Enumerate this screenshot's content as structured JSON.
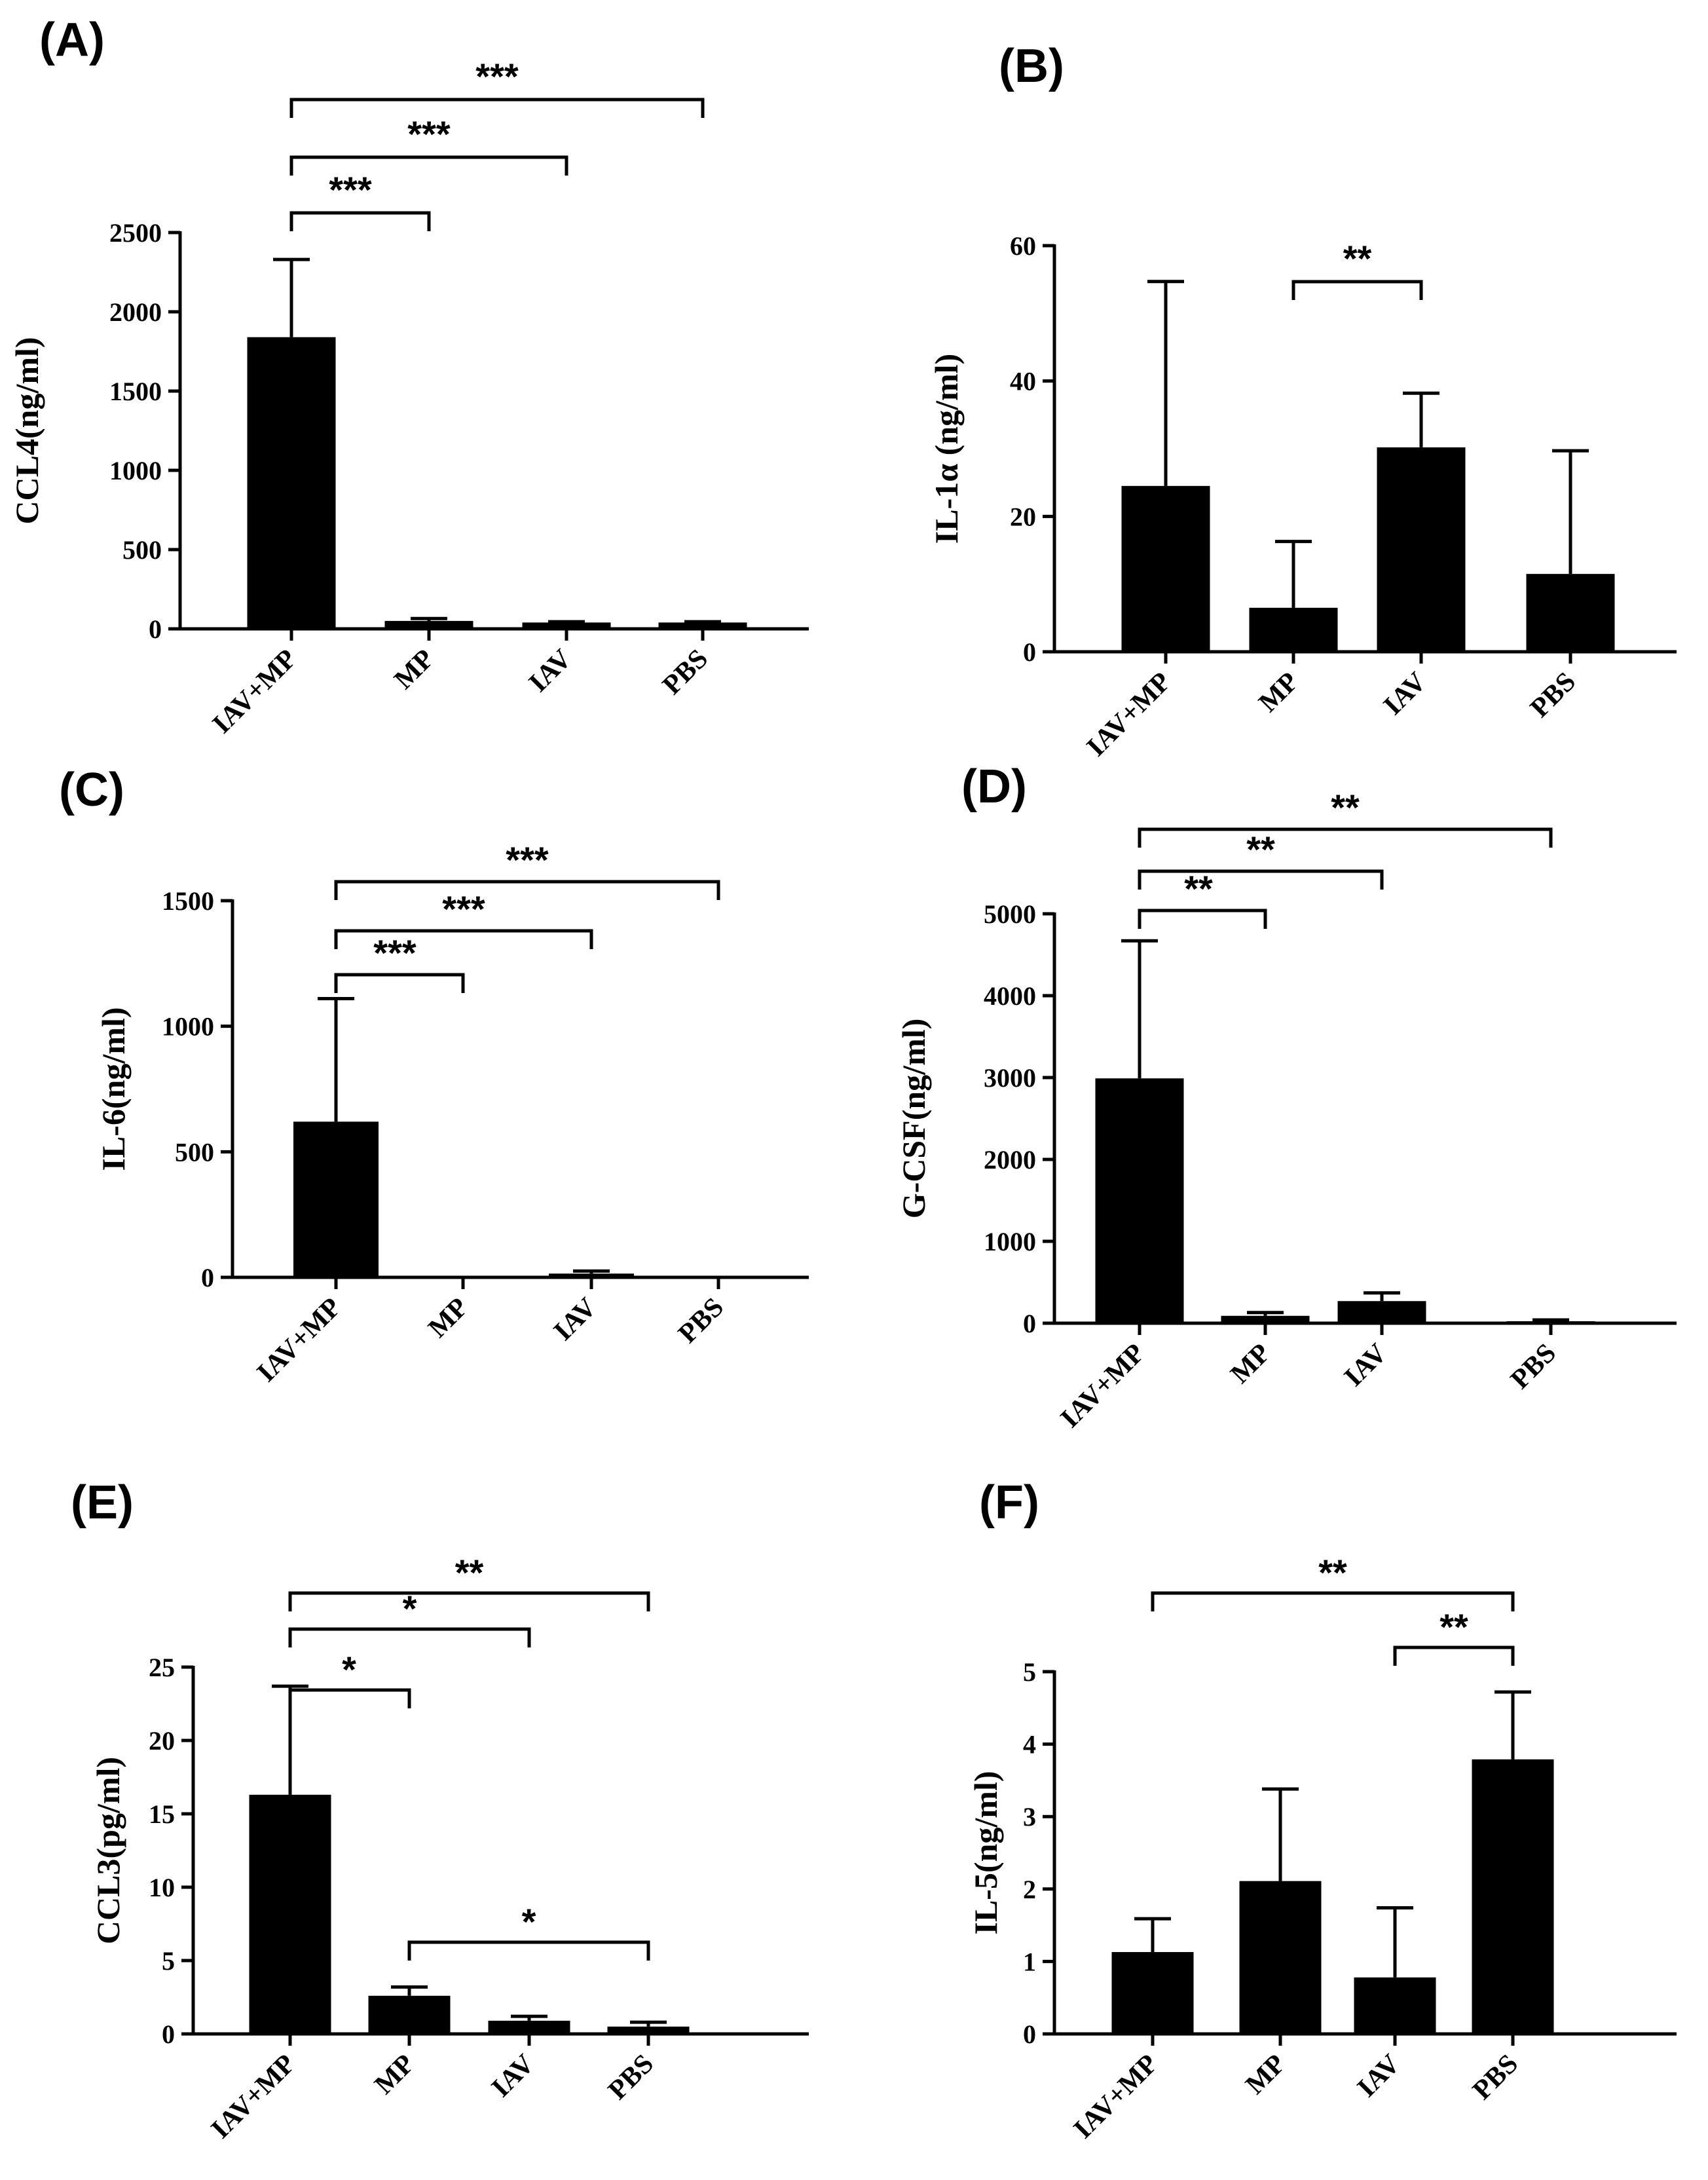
{
  "chart_data": [
    {
      "panel": "(A)",
      "type": "bar",
      "ylabel": "CCL4(ng/ml)",
      "categories": [
        "IAV+MP",
        "MP",
        "IAV",
        "PBS"
      ],
      "values": [
        1840,
        50,
        40,
        40
      ],
      "errors": [
        490,
        15,
        5,
        5
      ],
      "ylim": [
        0,
        2500
      ],
      "yticks": [
        0,
        500,
        1000,
        1500,
        2000,
        2500
      ],
      "ytick_labels": [
        "0",
        "500",
        "1000",
        "1500",
        "2000",
        "2500"
      ],
      "significance": [
        {
          "from": 0,
          "to": 1,
          "label": "***"
        },
        {
          "from": 0,
          "to": 2,
          "label": "***"
        },
        {
          "from": 0,
          "to": 3,
          "label": "***"
        }
      ]
    },
    {
      "panel": "(B)",
      "type": "bar",
      "ylabel": "IL-1α (ng/ml)",
      "categories": [
        "IAV+MP",
        "MP",
        "IAV",
        "PBS"
      ],
      "values": [
        24.5,
        6.5,
        30.2,
        11.5
      ],
      "errors": [
        30.2,
        9.8,
        8.0,
        18.2
      ],
      "ylim": [
        0,
        60
      ],
      "yticks": [
        0,
        20,
        40,
        60
      ],
      "ytick_labels": [
        "0",
        "20",
        "40",
        "60"
      ],
      "significance": [
        {
          "from": 1,
          "to": 2,
          "label": "**"
        }
      ]
    },
    {
      "panel": "(C)",
      "type": "bar",
      "ylabel": "IL-6(ng/ml)",
      "categories": [
        "IAV+MP",
        "MP",
        "IAV",
        "PBS"
      ],
      "values": [
        620,
        0,
        15,
        0
      ],
      "errors": [
        490,
        0,
        10,
        0
      ],
      "ylim": [
        0,
        1500
      ],
      "yticks": [
        0,
        500,
        1000,
        1500
      ],
      "ytick_labels": [
        "0",
        "500",
        "1000",
        "1500"
      ],
      "significance": [
        {
          "from": 0,
          "to": 1,
          "label": "***"
        },
        {
          "from": 0,
          "to": 2,
          "label": "***"
        },
        {
          "from": 0,
          "to": 3,
          "label": "***"
        }
      ]
    },
    {
      "panel": "(D)",
      "type": "bar",
      "ylabel": "G-CSF(ng/ml)",
      "categories": [
        "IAV+MP",
        "MP",
        "IAV",
        "PBS"
      ],
      "values": [
        2990,
        90,
        270,
        20
      ],
      "errors": [
        1680,
        40,
        100,
        20
      ],
      "ylim": [
        0,
        5000
      ],
      "yticks": [
        0,
        1000,
        2000,
        3000,
        4000,
        5000
      ],
      "ytick_labels": [
        "0",
        "1000",
        "2000",
        "3000",
        "4000",
        "5000"
      ],
      "significance": [
        {
          "from": 0,
          "to": 1,
          "label": "**"
        },
        {
          "from": 0,
          "to": 2,
          "label": "**"
        },
        {
          "from": 0,
          "to": 3,
          "label": "**"
        }
      ]
    },
    {
      "panel": "(E)",
      "type": "bar",
      "ylabel": "CCL3(pg/ml)",
      "categories": [
        "IAV+MP",
        "MP",
        "IAV",
        "PBS"
      ],
      "values": [
        16.3,
        2.6,
        0.9,
        0.5
      ],
      "errors": [
        7.4,
        0.6,
        0.3,
        0.3
      ],
      "ylim": [
        0,
        25
      ],
      "yticks": [
        0,
        5,
        10,
        15,
        20,
        25
      ],
      "ytick_labels": [
        "0",
        "5",
        "10",
        "15",
        "20",
        "25"
      ],
      "significance": [
        {
          "from": 0,
          "to": 1,
          "label": "*"
        },
        {
          "from": 0,
          "to": 2,
          "label": "*"
        },
        {
          "from": 0,
          "to": 3,
          "label": "**"
        },
        {
          "from": 1,
          "to": 3,
          "label": "*"
        }
      ]
    },
    {
      "panel": "(F)",
      "type": "bar",
      "ylabel": "IL-5(ng/ml)",
      "categories": [
        "IAV+MP",
        "MP",
        "IAV",
        "PBS"
      ],
      "values": [
        1.13,
        2.11,
        0.78,
        3.79
      ],
      "errors": [
        0.46,
        1.27,
        0.96,
        0.93
      ],
      "ylim": [
        0,
        5
      ],
      "yticks": [
        0,
        1,
        2,
        3,
        4,
        5
      ],
      "ytick_labels": [
        "0",
        "1",
        "2",
        "3",
        "4",
        "5"
      ],
      "significance": [
        {
          "from": 2,
          "to": 3,
          "label": "**"
        },
        {
          "from": 0,
          "to": 3,
          "label": "**"
        }
      ]
    }
  ]
}
